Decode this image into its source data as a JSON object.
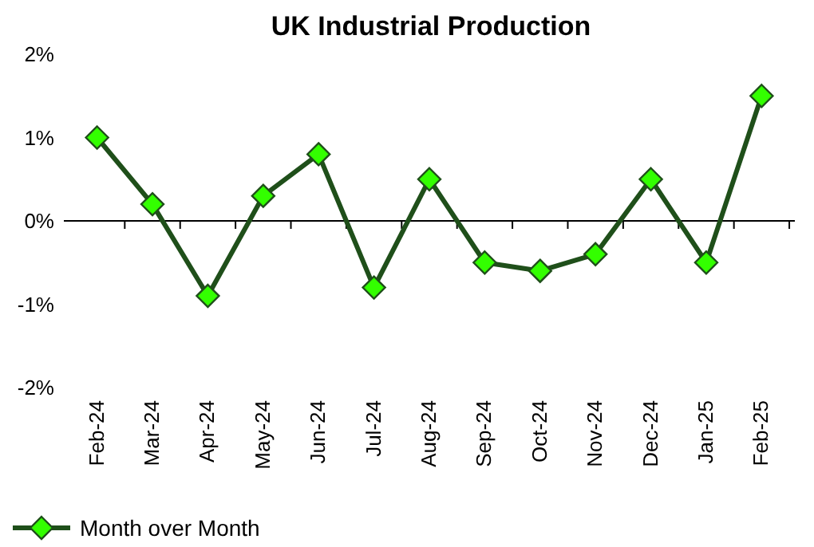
{
  "chart_data": {
    "type": "line",
    "title": "UK Industrial Production",
    "categories": [
      "Feb-24",
      "Mar-24",
      "Apr-24",
      "May-24",
      "Jun-24",
      "Jul-24",
      "Aug-24",
      "Sep-24",
      "Oct-24",
      "Nov-24",
      "Dec-24",
      "Jan-25",
      "Feb-25"
    ],
    "series": [
      {
        "name": "Month over Month",
        "color": "#1f4f1a",
        "values": [
          1.0,
          0.2,
          -0.9,
          0.3,
          0.8,
          -0.8,
          0.5,
          -0.5,
          -0.6,
          -0.4,
          0.5,
          -0.5,
          1.5
        ]
      }
    ],
    "ylim": [
      -2,
      2
    ],
    "yticks": [
      {
        "value": -2,
        "label": "-2%"
      },
      {
        "value": -1,
        "label": "-1%"
      },
      {
        "value": 0,
        "label": "0%"
      },
      {
        "value": 1,
        "label": "1%"
      },
      {
        "value": 2,
        "label": "2%"
      }
    ],
    "legend": "bottom left",
    "marker": "diamond",
    "line_style": "solid"
  }
}
